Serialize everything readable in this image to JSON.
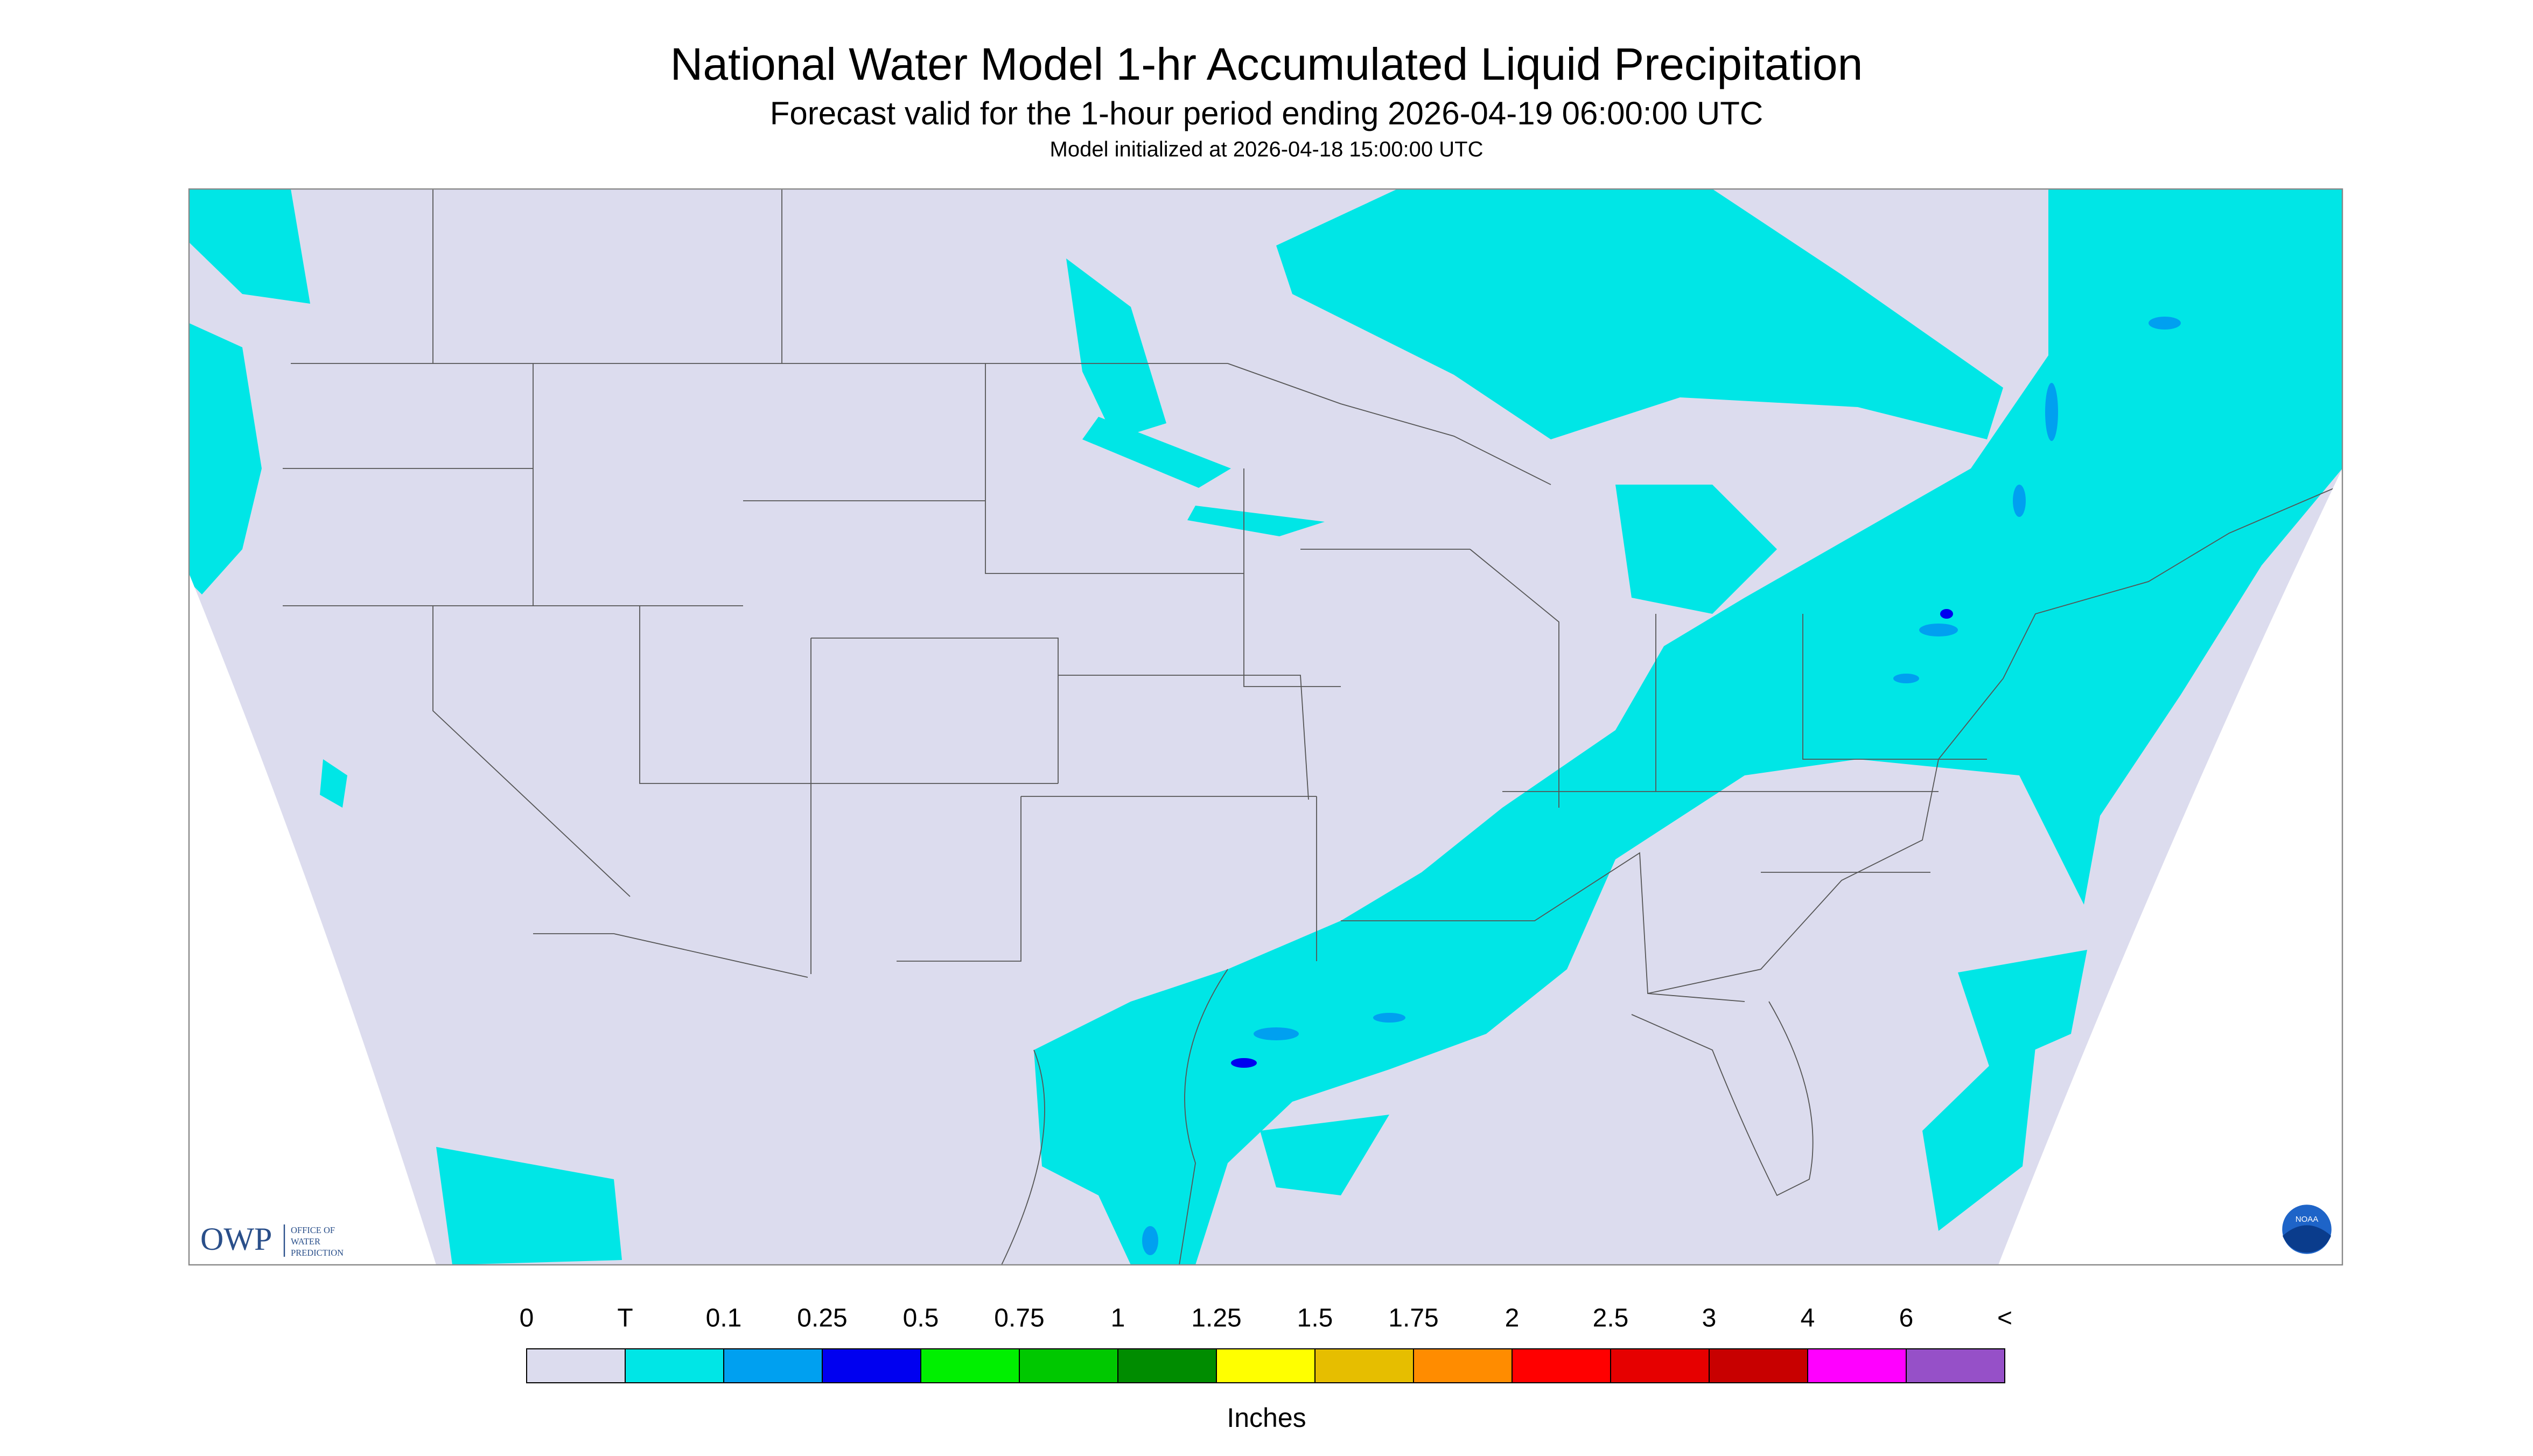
{
  "header": {
    "title": "National Water Model 1-hr Accumulated Liquid Precipitation",
    "subtitle": "Forecast valid for the 1-hour period ending 2026-04-19 06:00:00 UTC",
    "init": "Model initialized at 2026-04-18 15:00:00 UTC"
  },
  "legend": {
    "labels": [
      "0",
      "T",
      "0.1",
      "0.25",
      "0.5",
      "0.75",
      "1",
      "1.25",
      "1.5",
      "1.75",
      "2",
      "2.5",
      "3",
      "4",
      "6",
      "<"
    ],
    "colors": [
      "#dcdcee",
      "#00e6e6",
      "#00a0f0",
      "#0000f0",
      "#00f000",
      "#00c800",
      "#008c00",
      "#ffff00",
      "#e6be00",
      "#ff8c00",
      "#ff0000",
      "#e60000",
      "#c80000",
      "#ff00ff",
      "#9650c8"
    ],
    "unit": "Inches"
  },
  "logos": {
    "owp": "OWP",
    "owp_sub": [
      "OFFICE OF",
      "WATER",
      "PREDICTION"
    ],
    "noaa": "NOAA"
  }
}
